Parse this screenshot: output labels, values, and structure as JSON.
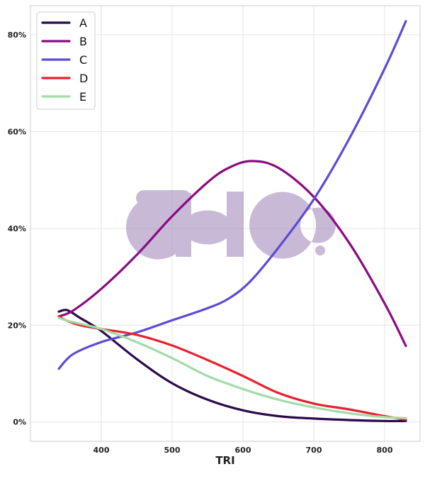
{
  "chart_data": {
    "type": "line",
    "title": "",
    "xlabel": "TRI",
    "ylabel": "",
    "xlim": [
      300,
      850
    ],
    "ylim": [
      -4,
      86
    ],
    "x_ticks": [
      400,
      500,
      600,
      700,
      800
    ],
    "x_tick_labels": [
      "400",
      "500",
      "600",
      "700",
      "800"
    ],
    "y_ticks": [
      0,
      20,
      40,
      60,
      80
    ],
    "y_tick_labels": [
      "0%",
      "20%",
      "40%",
      "60%",
      "80%"
    ],
    "grid": true,
    "legend_position": "top-left",
    "watermark": "aio.",
    "series": [
      {
        "name": "A",
        "color": "#2a0a4a",
        "x": [
          340,
          352,
          370,
          400,
          450,
          500,
          550,
          600,
          650,
          700,
          750,
          800,
          830
        ],
        "y": [
          22.8,
          23.1,
          21.5,
          18.8,
          13.0,
          8.0,
          4.6,
          2.4,
          1.2,
          0.7,
          0.4,
          0.2,
          0.2
        ]
      },
      {
        "name": "B",
        "color": "#8b0a80",
        "x": [
          340,
          360,
          400,
          450,
          500,
          550,
          580,
          612,
          650,
          700,
          750,
          800,
          830
        ],
        "y": [
          21.8,
          23.0,
          27.5,
          34.5,
          42.5,
          49.5,
          52.5,
          53.9,
          52.5,
          46.5,
          37.0,
          24.5,
          15.7
        ]
      },
      {
        "name": "C",
        "color": "#5b4bd6",
        "x": [
          340,
          360,
          400,
          450,
          500,
          550,
          580,
          610,
          650,
          700,
          750,
          800,
          830
        ],
        "y": [
          11.0,
          14.0,
          16.5,
          18.5,
          21.0,
          23.5,
          25.5,
          29.0,
          36.0,
          46.0,
          58.5,
          73.0,
          82.8
        ]
      },
      {
        "name": "D",
        "color": "#e8202e",
        "x": [
          340,
          350,
          370,
          400,
          450,
          500,
          550,
          600,
          650,
          700,
          750,
          800,
          830
        ],
        "y": [
          21.8,
          21.0,
          20.0,
          19.2,
          18.0,
          15.8,
          12.8,
          9.5,
          6.0,
          3.8,
          2.6,
          1.2,
          0.5
        ]
      },
      {
        "name": "E",
        "color": "#a3dca8",
        "x": [
          340,
          350,
          370,
          400,
          450,
          500,
          550,
          600,
          650,
          700,
          750,
          800,
          830
        ],
        "y": [
          21.5,
          21.0,
          20.3,
          19.2,
          16.5,
          13.2,
          9.5,
          6.8,
          4.6,
          3.0,
          1.8,
          1.0,
          0.8
        ]
      }
    ]
  }
}
